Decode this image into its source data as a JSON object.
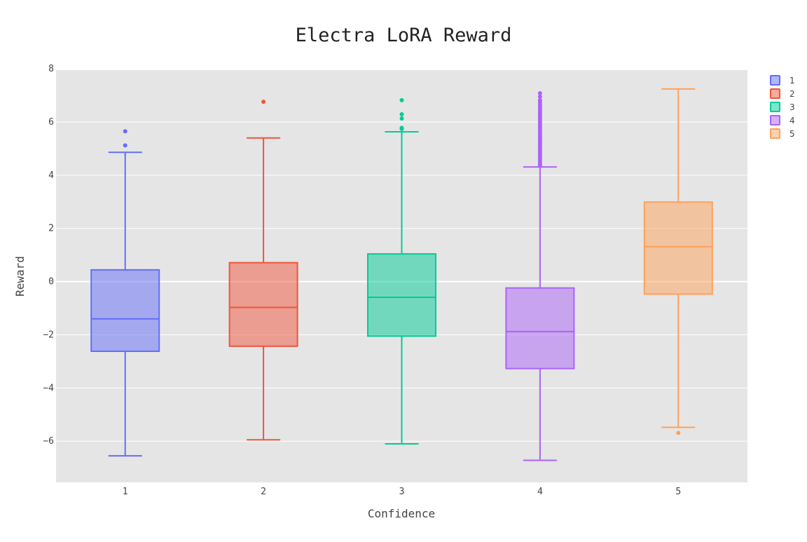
{
  "chart_data": {
    "type": "box",
    "title": "Electra LoRA Reward",
    "xlabel": "Confidence",
    "ylabel": "Reward",
    "ylim": [
      -7.55,
      7.95
    ],
    "yticks": [
      8,
      6,
      4,
      2,
      0,
      -2,
      -4,
      -6
    ],
    "ytick_labels": [
      "8",
      "6",
      "4",
      "2",
      "0",
      "−2",
      "−4",
      "−6"
    ],
    "categories": [
      "1",
      "2",
      "3",
      "4",
      "5"
    ],
    "grid": true,
    "legend_position": "top-right",
    "series": [
      {
        "name": "1",
        "color": "#636efa",
        "min": -6.55,
        "q1": -2.62,
        "median": -1.4,
        "q3": 0.44,
        "max": 4.86,
        "outliers": [
          5.12,
          5.65
        ]
      },
      {
        "name": "2",
        "color": "#ef553b",
        "min": -5.95,
        "q1": -2.43,
        "median": -0.97,
        "q3": 0.71,
        "max": 5.4,
        "outliers": [
          6.76
        ]
      },
      {
        "name": "3",
        "color": "#00cc96",
        "min": -6.1,
        "q1": -2.05,
        "median": -0.59,
        "q3": 1.04,
        "max": 5.63,
        "outliers": [
          5.74,
          5.78,
          6.13,
          6.29,
          6.82
        ]
      },
      {
        "name": "4",
        "color": "#ab63fa",
        "min": -6.72,
        "q1": -3.27,
        "median": -1.88,
        "q3": -0.24,
        "max": 4.31,
        "outliers": [
          4.35,
          4.42,
          4.5,
          4.58,
          4.66,
          4.74,
          4.82,
          4.9,
          4.98,
          5.06,
          5.14,
          5.22,
          5.3,
          5.38,
          5.46,
          5.54,
          5.62,
          5.7,
          5.78,
          5.86,
          5.94,
          6.02,
          6.1,
          6.18,
          6.26,
          6.34,
          6.42,
          6.5,
          6.58,
          6.66,
          6.74,
          6.82,
          6.95,
          7.08
        ]
      },
      {
        "name": "5",
        "color": "#ffa15a",
        "min": -5.48,
        "q1": -0.47,
        "median": 1.31,
        "q3": 2.99,
        "max": 7.24,
        "outliers": [
          -5.69
        ]
      }
    ]
  }
}
